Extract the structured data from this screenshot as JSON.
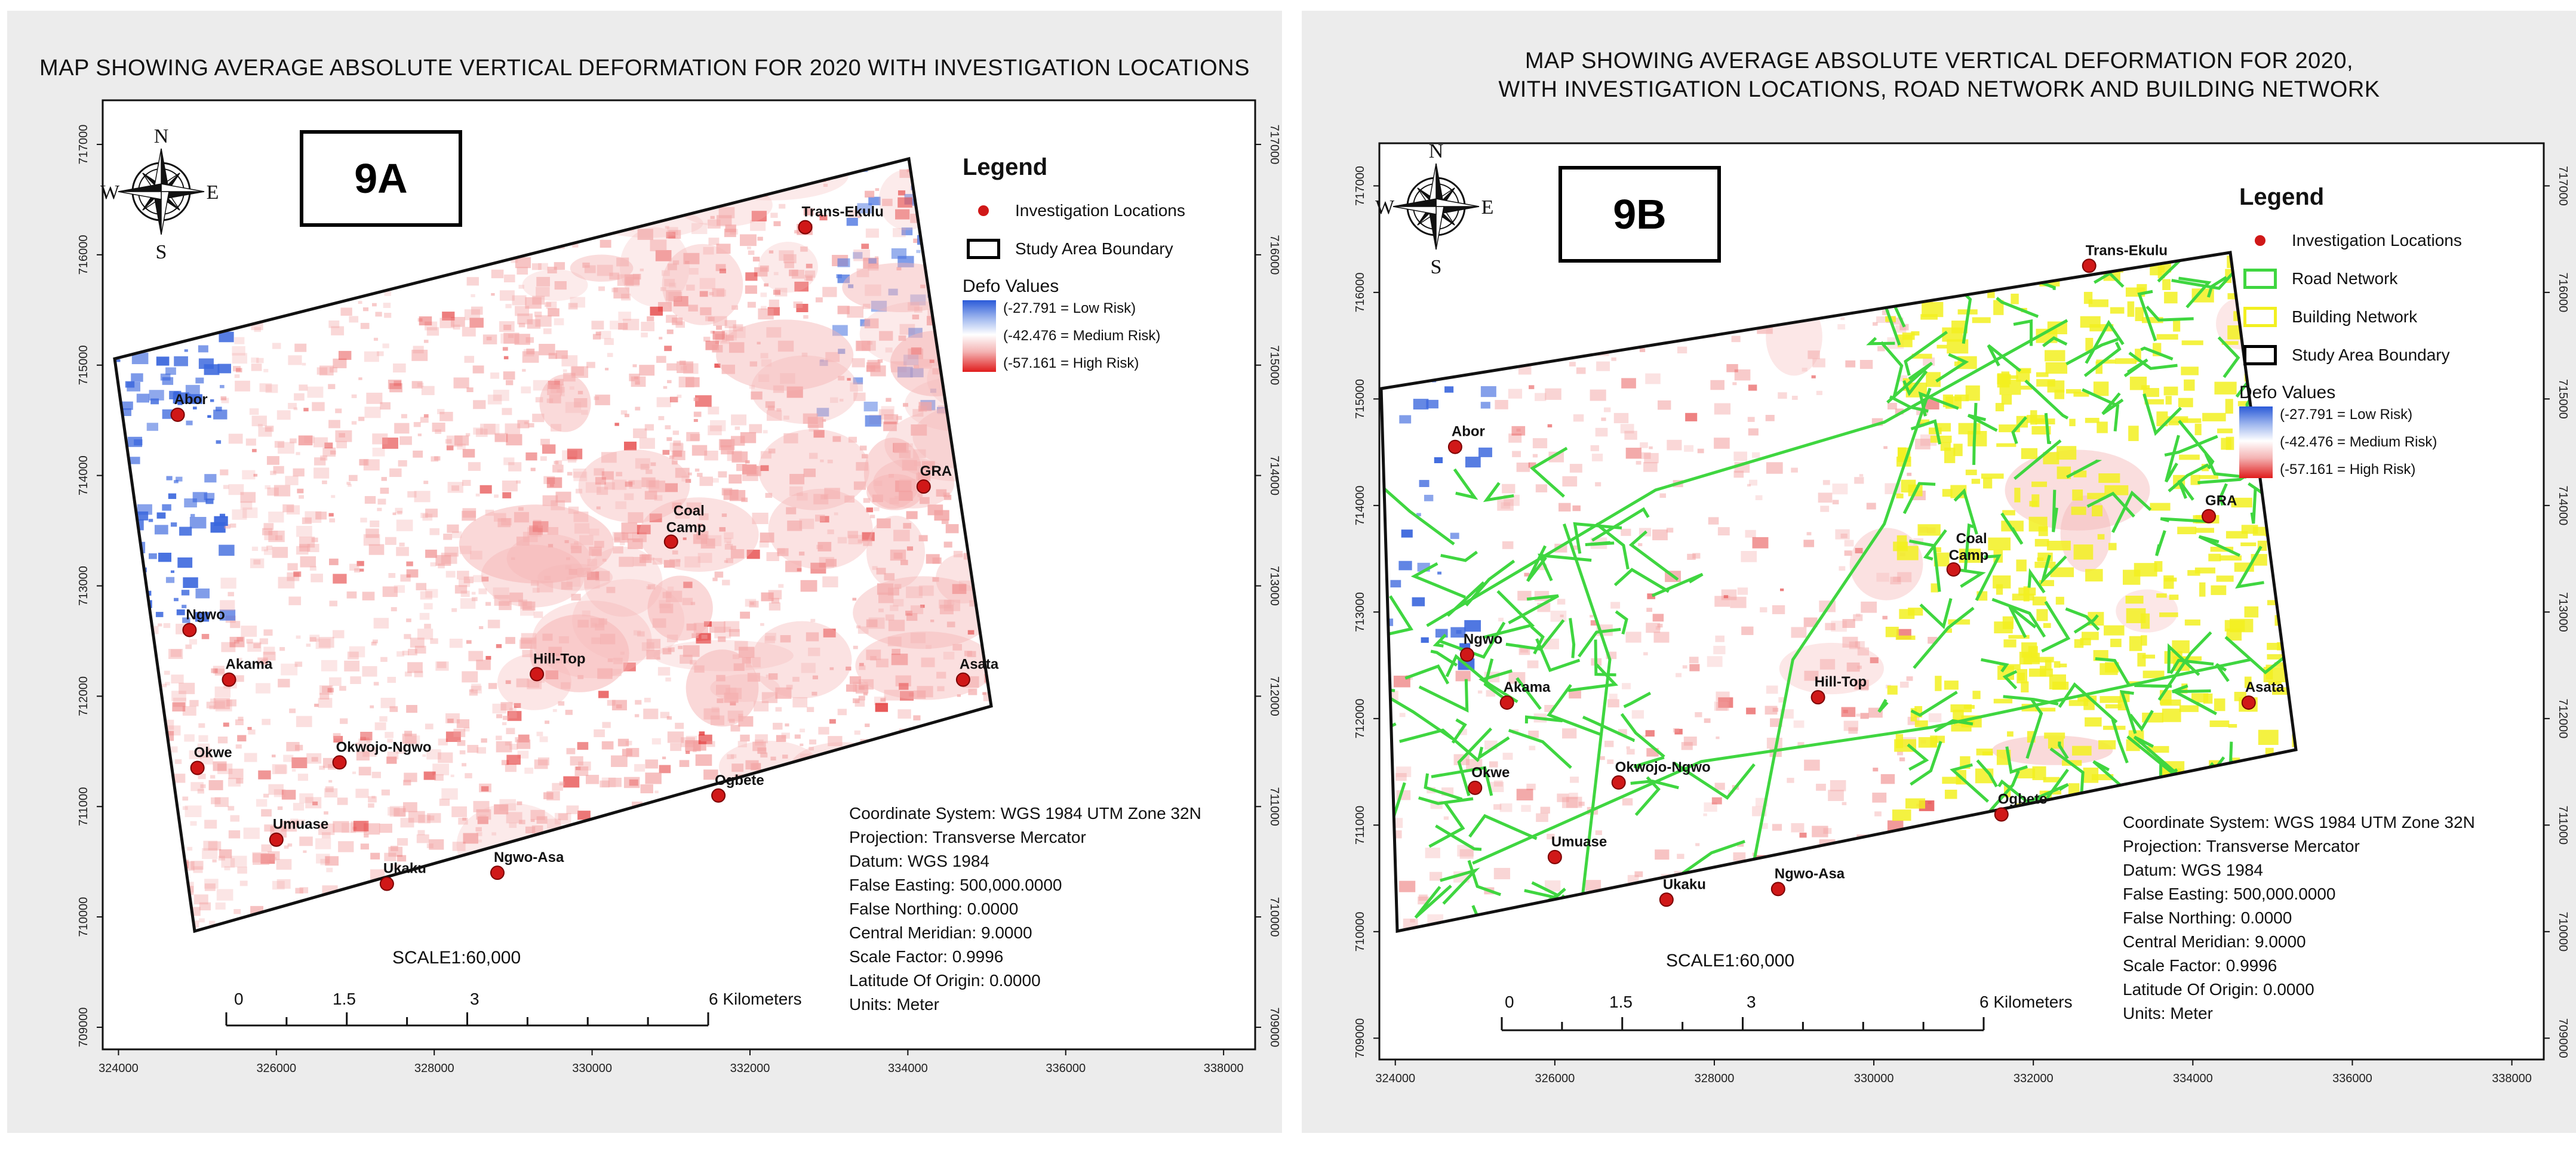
{
  "panels": [
    {
      "id": "9A",
      "title_lines": [
        "MAP SHOWING AVERAGE ABSOLUTE VERTICAL DEFORMATION FOR 2020 WITH INVESTIGATION LOCATIONS"
      ],
      "map_label": "9A",
      "legend_title": "Legend",
      "legend_items": [
        {
          "type": "dot",
          "label": "Investigation Locations"
        },
        {
          "type": "boundary",
          "label": "Study Area Boundary"
        }
      ],
      "defo_title": "Defo Values",
      "defo_labels": [
        "(-27.791 = Low Risk)",
        "(-42.476 = Medium Risk)",
        "(-57.161 = High Risk)"
      ],
      "coord_info": [
        "Coordinate System: WGS 1984 UTM Zone 32N",
        "Projection: Transverse Mercator",
        "Datum: WGS 1984",
        "False Easting: 500,000.0000",
        "False Northing: 0.0000",
        "Central Meridian: 9.0000",
        "Scale Factor: 0.9996",
        "Latitude Of Origin: 0.0000",
        "Units: Meter"
      ],
      "scale_title": "SCALE1:60,000",
      "scale_labels": [
        "0",
        "1.5",
        "3",
        "6 Kilometers"
      ]
    },
    {
      "id": "9B",
      "title_lines": [
        "MAP SHOWING AVERAGE ABSOLUTE VERTICAL DEFORMATION FOR 2020,",
        "WITH INVESTIGATION LOCATIONS, ROAD NETWORK AND BUILDING NETWORK"
      ],
      "map_label": "9B",
      "legend_title": "Legend",
      "legend_items": [
        {
          "type": "dot",
          "label": "Investigation Locations"
        },
        {
          "type": "road",
          "label": "Road Network"
        },
        {
          "type": "building",
          "label": "Building Network"
        },
        {
          "type": "boundary",
          "label": "Study Area Boundary"
        }
      ],
      "defo_title": "Defo Values",
      "defo_labels": [
        "(-27.791 = Low Risk)",
        "(-42.476 = Medium Risk)",
        "(-57.161 = High Risk)"
      ],
      "coord_info": [
        "Coordinate System: WGS 1984 UTM Zone 32N",
        "Projection: Transverse Mercator",
        "Datum: WGS 1984",
        "False Easting: 500,000.0000",
        "False Northing: 0.0000",
        "Central Meridian: 9.0000",
        "Scale Factor: 0.9996",
        "Latitude Of Origin: 0.0000",
        "Units: Meter"
      ],
      "scale_title": "SCALE1:60,000",
      "scale_labels": [
        "0",
        "1.5",
        "3",
        "6 Kilometers"
      ]
    }
  ],
  "compass": {
    "n": "N",
    "s": "S",
    "e": "E",
    "w": "W"
  },
  "x_ticks": [
    "324000",
    "326000",
    "328000",
    "330000",
    "332000",
    "334000",
    "336000",
    "338000"
  ],
  "y_ticks": [
    "717000",
    "716000",
    "715000",
    "714000",
    "713000",
    "712000",
    "711000",
    "710000",
    "709000"
  ],
  "locations": [
    {
      "name": "Trans-Ekulu",
      "x": 332700,
      "y": 716250
    },
    {
      "name": "Abor",
      "x": 324750,
      "y": 714550
    },
    {
      "name": "GRA",
      "x": 334200,
      "y": 713900
    },
    {
      "name": "Coal Camp",
      "x": 331000,
      "y": 713400
    },
    {
      "name": "Ngwo",
      "x": 324900,
      "y": 712600
    },
    {
      "name": "Akama",
      "x": 325400,
      "y": 712150
    },
    {
      "name": "Hill-Top",
      "x": 329300,
      "y": 712200
    },
    {
      "name": "Asata",
      "x": 334700,
      "y": 712150
    },
    {
      "name": "Okwe",
      "x": 325000,
      "y": 711350
    },
    {
      "name": "Okwojo-Ngwo",
      "x": 326800,
      "y": 711400
    },
    {
      "name": "Ogbete",
      "x": 331600,
      "y": 711100
    },
    {
      "name": "Umuase",
      "x": 326000,
      "y": 710700
    },
    {
      "name": "Ukaku",
      "x": 327400,
      "y": 710300
    },
    {
      "name": "Ngwo-Asa",
      "x": 328800,
      "y": 710400
    }
  ],
  "colors": {
    "low_risk": "#2a5ad8",
    "high_risk": "#e01c1c",
    "road": "#3fd640",
    "building": "#f2f020",
    "point": "#d01818"
  }
}
